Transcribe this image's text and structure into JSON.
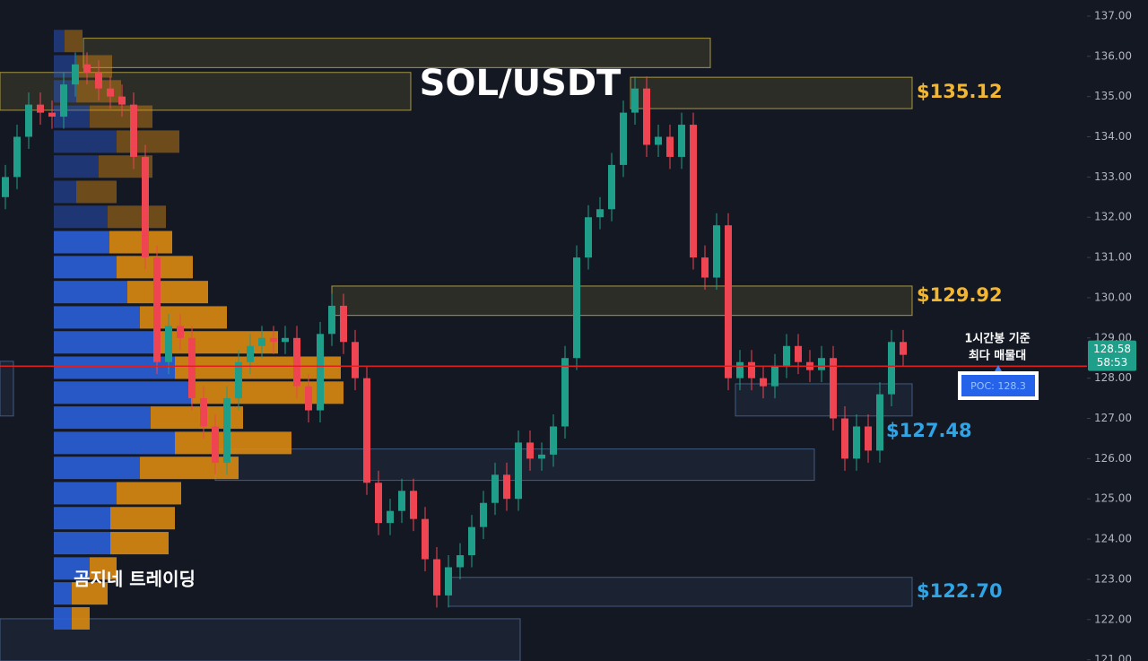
{
  "chart_data": {
    "type": "candlestick",
    "title": "SOL/USDT",
    "watermark": "곰지네 트레이딩",
    "up_color": "#1f9e89",
    "down_color": "#ef4452",
    "open": [
      132.5,
      133.0,
      134.0,
      134.8,
      134.6,
      134.5,
      135.3,
      135.8,
      135.6,
      135.2,
      135.0,
      134.8,
      133.5,
      131.0,
      128.4,
      129.3,
      129.0,
      127.5,
      126.8,
      125.9,
      127.5,
      128.4,
      128.8,
      129.0,
      128.9,
      129.0,
      127.8,
      127.2,
      129.1,
      129.8,
      128.9,
      128.0,
      125.4,
      124.4,
      124.7,
      125.2,
      124.5,
      123.5,
      122.6,
      123.3,
      123.6,
      124.3,
      124.9,
      125.6,
      125.0,
      126.4,
      126.0,
      126.1,
      126.8,
      128.5,
      131.0,
      132.0,
      132.2,
      133.3,
      134.6,
      135.2,
      133.8,
      134.0,
      133.5,
      134.3,
      131.0,
      130.5,
      131.8,
      128.0,
      128.4,
      128.0,
      127.8,
      128.3,
      128.8,
      128.4,
      128.2,
      128.5,
      127.0,
      126.0,
      126.8,
      126.2,
      127.6,
      128.9
    ],
    "high": [
      133.3,
      134.3,
      135.1,
      135.1,
      134.9,
      135.6,
      136.1,
      136.1,
      135.9,
      135.5,
      135.3,
      135.1,
      133.8,
      131.3,
      129.6,
      129.6,
      129.3,
      127.8,
      127.1,
      127.8,
      128.7,
      129.1,
      129.3,
      129.3,
      129.3,
      129.3,
      128.1,
      129.4,
      130.1,
      130.1,
      129.2,
      128.3,
      125.7,
      125.0,
      125.5,
      125.5,
      124.8,
      123.8,
      123.6,
      123.9,
      124.6,
      125.2,
      125.9,
      125.9,
      126.7,
      126.7,
      126.4,
      127.1,
      128.8,
      131.3,
      132.3,
      132.5,
      133.6,
      134.9,
      135.5,
      135.5,
      134.3,
      134.3,
      134.6,
      134.6,
      131.3,
      132.1,
      132.1,
      128.7,
      128.7,
      128.3,
      128.6,
      129.1,
      129.1,
      128.7,
      128.8,
      128.8,
      127.3,
      127.1,
      127.1,
      127.9,
      129.2,
      129.2
    ],
    "low": [
      132.2,
      132.7,
      133.7,
      134.3,
      134.2,
      134.2,
      135.0,
      135.3,
      134.9,
      134.7,
      134.5,
      133.2,
      130.7,
      128.1,
      128.1,
      128.7,
      127.2,
      126.5,
      125.6,
      125.6,
      127.2,
      128.1,
      128.5,
      128.6,
      128.6,
      127.5,
      126.9,
      126.9,
      128.8,
      128.6,
      127.7,
      125.1,
      124.1,
      124.1,
      124.4,
      124.2,
      123.2,
      122.3,
      122.3,
      123.0,
      123.3,
      124.0,
      124.6,
      124.7,
      124.7,
      125.7,
      125.7,
      125.8,
      126.5,
      128.2,
      130.7,
      131.7,
      131.9,
      133.0,
      134.3,
      133.5,
      133.5,
      133.2,
      133.2,
      130.7,
      130.2,
      130.2,
      127.7,
      127.7,
      127.7,
      127.5,
      127.5,
      128.0,
      128.1,
      127.9,
      127.9,
      126.7,
      125.7,
      125.7,
      125.9,
      125.9,
      127.3,
      128.3
    ],
    "close": [
      133.0,
      134.0,
      134.8,
      134.6,
      134.5,
      135.3,
      135.8,
      135.6,
      135.2,
      135.0,
      134.8,
      133.5,
      131.0,
      128.4,
      129.3,
      129.0,
      127.5,
      126.8,
      125.9,
      127.5,
      128.4,
      128.8,
      129.0,
      128.9,
      129.0,
      127.8,
      127.2,
      129.1,
      129.8,
      128.9,
      128.0,
      125.4,
      124.4,
      124.7,
      125.2,
      124.5,
      123.5,
      122.6,
      123.3,
      123.6,
      124.3,
      124.9,
      125.6,
      125.0,
      126.4,
      126.0,
      126.1,
      126.8,
      128.5,
      131.0,
      132.0,
      132.2,
      133.3,
      134.6,
      135.2,
      133.8,
      134.0,
      133.5,
      134.3,
      131.0,
      130.5,
      131.8,
      128.0,
      128.4,
      128.0,
      127.8,
      128.3,
      128.8,
      128.4,
      128.2,
      128.5,
      127.0,
      126.0,
      126.8,
      126.2,
      127.6,
      128.9,
      128.58
    ],
    "ylim": [
      120.97,
      137.4
    ],
    "yticks": [
      {
        "value": 137,
        "label": "137.00"
      },
      {
        "value": 136,
        "label": "136.00"
      },
      {
        "value": 135,
        "label": "135.00"
      },
      {
        "value": 134,
        "label": "134.00"
      },
      {
        "value": 133,
        "label": "133.00"
      },
      {
        "value": 132,
        "label": "132.00"
      },
      {
        "value": 131,
        "label": "131.00"
      },
      {
        "value": 130,
        "label": "130.00"
      },
      {
        "value": 129,
        "label": "129.00"
      },
      {
        "value": 128,
        "label": "128.00"
      },
      {
        "value": 127,
        "label": "127.00"
      },
      {
        "value": 126,
        "label": "126.00"
      },
      {
        "value": 125,
        "label": "125.00"
      },
      {
        "value": 124,
        "label": "124.00"
      },
      {
        "value": 123,
        "label": "123.00"
      },
      {
        "value": 122,
        "label": "122.00"
      },
      {
        "value": 121,
        "label": "121.00"
      }
    ],
    "volume_profile": {
      "buy_color": "#2a5ed8",
      "sell_color": "#d98a12",
      "prices": [
        136.38,
        135.75,
        135.13,
        134.5,
        133.88,
        133.26,
        132.63,
        132.01,
        131.38,
        130.76,
        130.14,
        129.51,
        128.89,
        128.26,
        127.64,
        127.02,
        126.39,
        125.77,
        125.14,
        124.52,
        123.9,
        123.27,
        122.65,
        122.03
      ],
      "buy": [
        12,
        25,
        25,
        40,
        70,
        50,
        25,
        60,
        62,
        70,
        82,
        96,
        115,
        135,
        153,
        108,
        135,
        96,
        70,
        63,
        63,
        40,
        20,
        20
      ],
      "sell": [
        20,
        40,
        50,
        70,
        70,
        60,
        45,
        65,
        70,
        85,
        90,
        97,
        135,
        185,
        170,
        103,
        130,
        110,
        72,
        72,
        65,
        30,
        40,
        20
      ]
    },
    "zones": [
      {
        "top": 136.45,
        "bottom": 135.72,
        "color": "#c8b44a"
      },
      {
        "top": 135.6,
        "bottom": 134.66,
        "color": "#c8b44a"
      },
      {
        "top": 135.48,
        "bottom": 134.7,
        "color": "#c8b44a",
        "label": "$135.12",
        "label_color": "#f2b630"
      },
      {
        "top": 130.29,
        "bottom": 129.56,
        "color": "#c8b44a",
        "label": "$129.92",
        "label_color": "#f2b630"
      },
      {
        "top": 127.86,
        "bottom": 127.06,
        "color": "#4a6a94",
        "label": "$127.48",
        "label_color": "#2fa4e7"
      },
      {
        "top": 128.42,
        "bottom": 127.06,
        "color": "#4a6a94"
      },
      {
        "top": 126.24,
        "bottom": 125.46,
        "color": "#4a6a94"
      },
      {
        "top": 123.05,
        "bottom": 122.33,
        "color": "#4a6a94",
        "label": "$122.70",
        "label_color": "#2fa4e7"
      },
      {
        "top": 122.02,
        "bottom": 120.97,
        "color": "#4a6a94"
      }
    ],
    "poc": {
      "value": 128.3,
      "label": "POC: 128.3",
      "note": [
        "1시간봉 기준",
        "최다 매물대"
      ],
      "color": "#e01e1e"
    },
    "last_price": {
      "value": 128.58,
      "countdown": "58:53",
      "color": "#1f9e89"
    }
  }
}
